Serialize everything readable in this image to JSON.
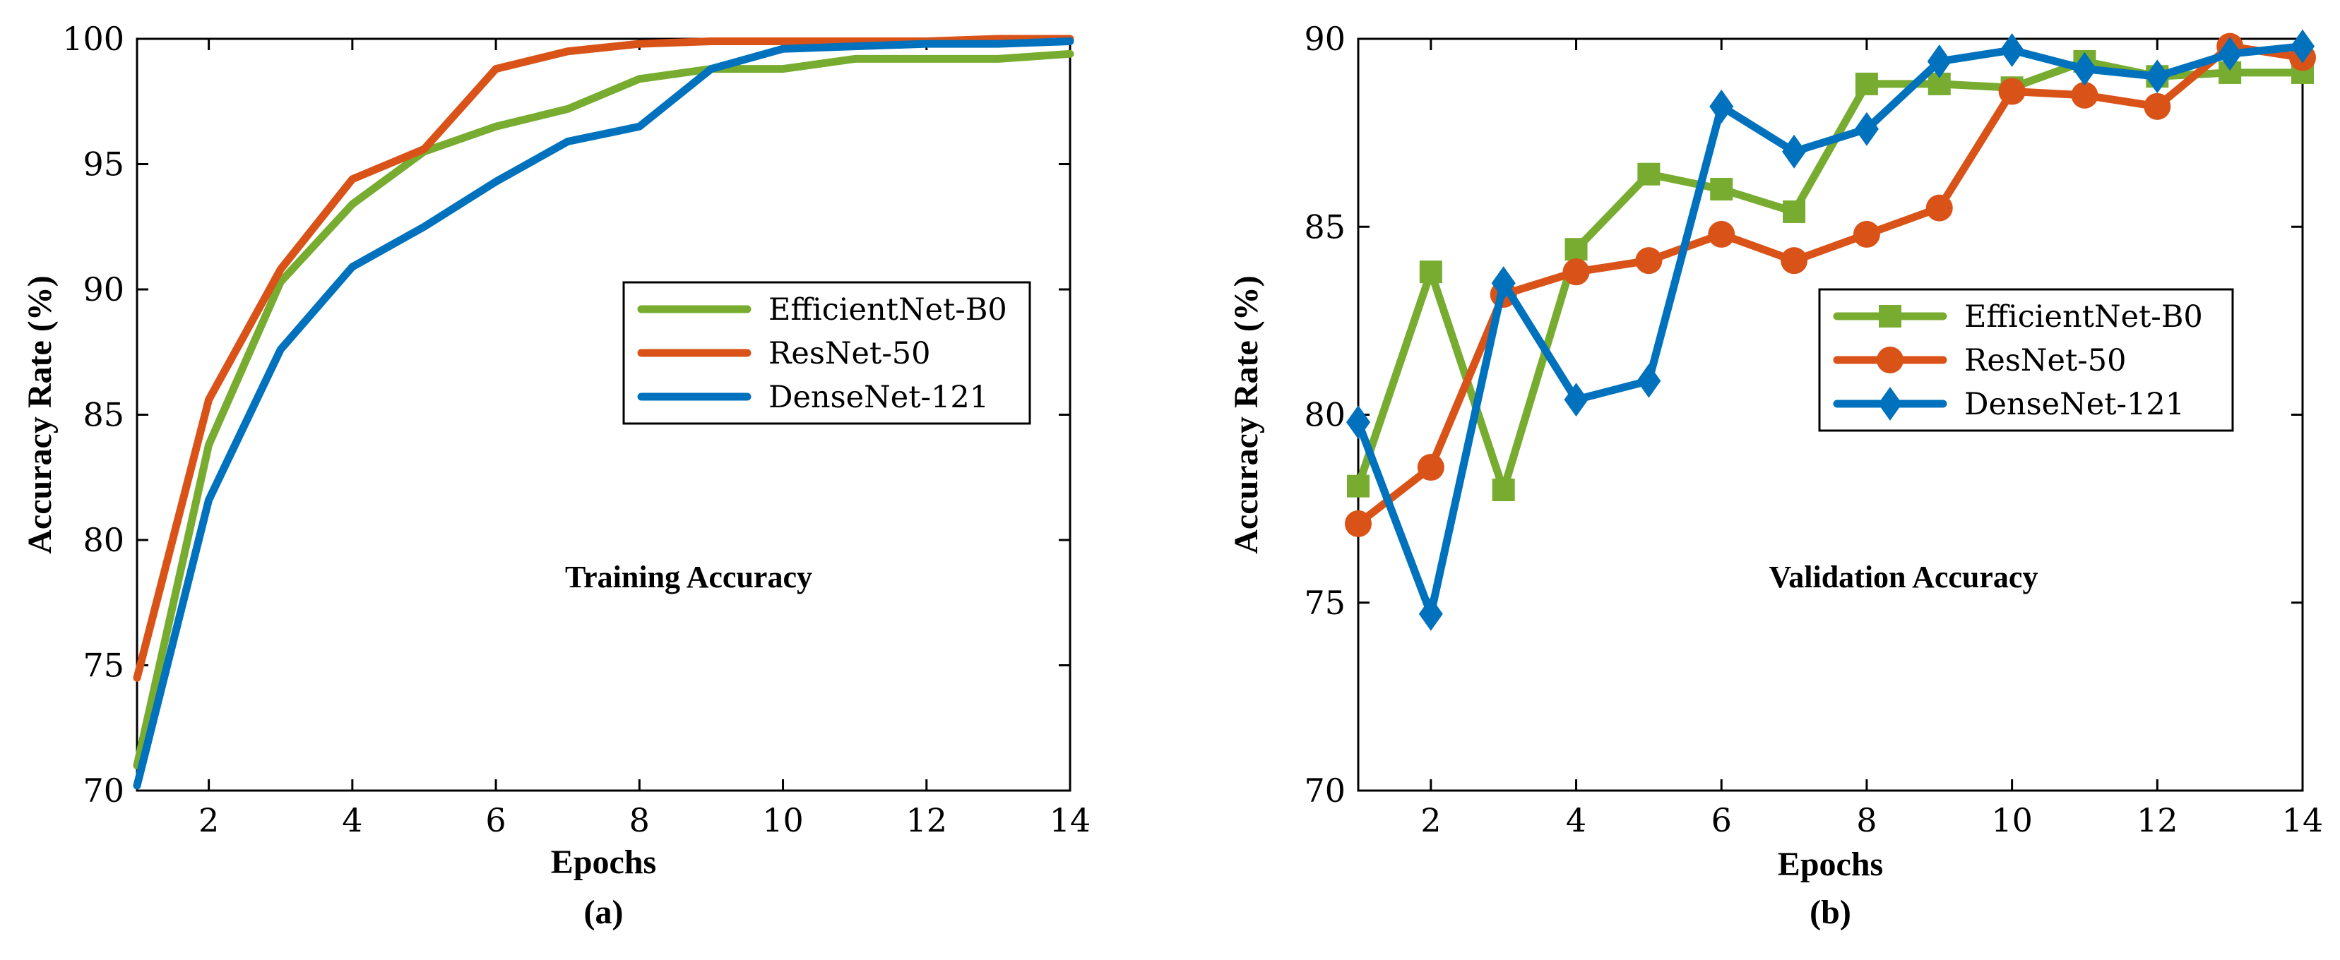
{
  "colors": {
    "EfficientNet-B0": "#77AC30",
    "ResNet-50": "#D95319",
    "DenseNet-121": "#0072BD"
  },
  "chart_data": [
    {
      "type": "line",
      "title": "Training Accuracy",
      "panel_label": "(a)",
      "xlabel": "Epochs",
      "ylabel": "Accuracy Rate (%)",
      "xlim": [
        1,
        14
      ],
      "ylim": [
        70,
        100
      ],
      "xticks": [
        2,
        4,
        6,
        8,
        10,
        12,
        14
      ],
      "yticks": [
        70,
        75,
        80,
        85,
        90,
        95,
        100
      ],
      "markers": false,
      "legend_position": "center-right",
      "x": [
        1,
        2,
        3,
        4,
        5,
        6,
        7,
        8,
        9,
        10,
        11,
        12,
        13,
        14
      ],
      "series": [
        {
          "name": "EfficientNet-B0",
          "values": [
            71.0,
            83.8,
            90.3,
            93.4,
            95.5,
            96.5,
            97.2,
            98.4,
            98.8,
            98.8,
            99.2,
            99.2,
            99.2,
            99.4
          ]
        },
        {
          "name": "ResNet-50",
          "values": [
            74.5,
            85.6,
            90.8,
            94.4,
            95.6,
            98.8,
            99.5,
            99.8,
            99.9,
            99.9,
            99.9,
            99.9,
            100.0,
            100.0
          ]
        },
        {
          "name": "DenseNet-121",
          "values": [
            70.2,
            81.6,
            87.6,
            90.9,
            92.5,
            94.3,
            95.9,
            96.5,
            98.8,
            99.6,
            99.7,
            99.8,
            99.8,
            99.9
          ]
        }
      ]
    },
    {
      "type": "line",
      "title": "Validation Accuracy",
      "panel_label": "(b)",
      "xlabel": "Epochs",
      "ylabel": "Accuracy Rate (%)",
      "xlim": [
        1,
        14
      ],
      "ylim": [
        70,
        90
      ],
      "xticks": [
        2,
        4,
        6,
        8,
        10,
        12,
        14
      ],
      "yticks": [
        70,
        75,
        80,
        85,
        90
      ],
      "markers": true,
      "legend_position": "center-right",
      "x": [
        1,
        2,
        3,
        4,
        5,
        6,
        7,
        8,
        9,
        10,
        11,
        12,
        13,
        14
      ],
      "series": [
        {
          "name": "EfficientNet-B0",
          "marker": "square",
          "values": [
            78.1,
            83.8,
            78.0,
            84.4,
            86.4,
            86.0,
            85.4,
            88.8,
            88.8,
            88.7,
            89.4,
            89.0,
            89.1,
            89.1
          ]
        },
        {
          "name": "ResNet-50",
          "marker": "circle",
          "values": [
            77.1,
            78.6,
            83.2,
            83.8,
            84.1,
            84.8,
            84.1,
            84.8,
            85.5,
            88.6,
            88.5,
            88.2,
            89.8,
            89.5
          ]
        },
        {
          "name": "DenseNet-121",
          "marker": "diamond",
          "values": [
            79.8,
            74.7,
            83.5,
            80.4,
            80.9,
            88.2,
            87.0,
            87.6,
            89.4,
            89.7,
            89.2,
            89.0,
            89.6,
            89.8
          ]
        }
      ]
    }
  ]
}
